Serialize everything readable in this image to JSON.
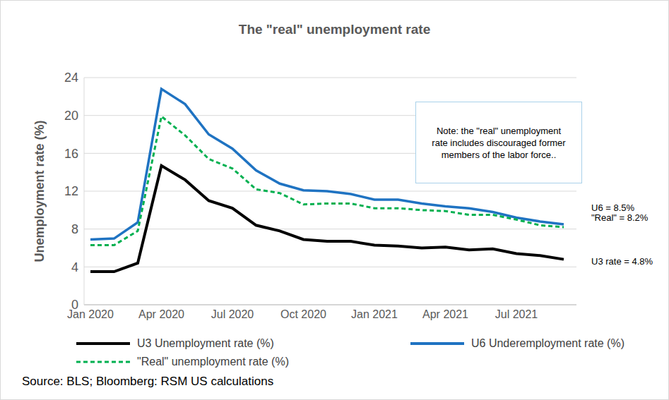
{
  "chart_data": {
    "type": "line",
    "title": "The \"real\" unemployment rate",
    "y_label": "Unemployment rate (%)",
    "categories": [
      "Jan 2020",
      null,
      null,
      "Apr 2020",
      null,
      null,
      "Jul 2020",
      null,
      null,
      "Oct 2020",
      null,
      null,
      "Jan 2021",
      null,
      null,
      "Apr 2021",
      null,
      null,
      "Jul 2021",
      null,
      null
    ],
    "series": [
      {
        "name": "U3 Unemployment rate (%)",
        "color": "#000000",
        "line_style": "solid",
        "values": [
          3.5,
          3.5,
          4.4,
          14.7,
          13.2,
          11.0,
          10.2,
          8.4,
          7.8,
          6.9,
          6.7,
          6.7,
          6.3,
          6.2,
          6.0,
          6.1,
          5.8,
          5.9,
          5.4,
          5.2,
          4.8
        ]
      },
      {
        "name": "U6 Underemployment rate (%)",
        "color": "#1f73c2",
        "line_style": "solid",
        "values": [
          6.9,
          7.0,
          8.7,
          22.8,
          21.2,
          18.0,
          16.5,
          14.2,
          12.8,
          12.1,
          12.0,
          11.7,
          11.1,
          11.1,
          10.7,
          10.4,
          10.2,
          9.8,
          9.2,
          8.8,
          8.5
        ]
      },
      {
        "name": "\"Real\" unemployment rate (%)",
        "color": "#00b050",
        "line_style": "dashed",
        "values": [
          6.3,
          6.3,
          7.8,
          19.9,
          17.9,
          15.4,
          14.4,
          12.2,
          11.8,
          10.6,
          10.7,
          10.7,
          10.2,
          10.2,
          10.0,
          9.9,
          9.5,
          9.5,
          9.0,
          8.4,
          8.2
        ]
      }
    ],
    "ylim": [
      0,
      24
    ],
    "yticks": [
      0,
      4,
      8,
      12,
      16,
      20,
      24
    ],
    "grid": true,
    "legend": "bottom",
    "annotations": [
      "Note: the \"real\" unemployment rate includes discouraged former members of the labor force..",
      "U6 = 8.5%",
      "\"Real\" = 8.2%",
      "U3 rate = 4.8%"
    ],
    "source": "Source: BLS; Bloomberg: RSM US calculations"
  }
}
